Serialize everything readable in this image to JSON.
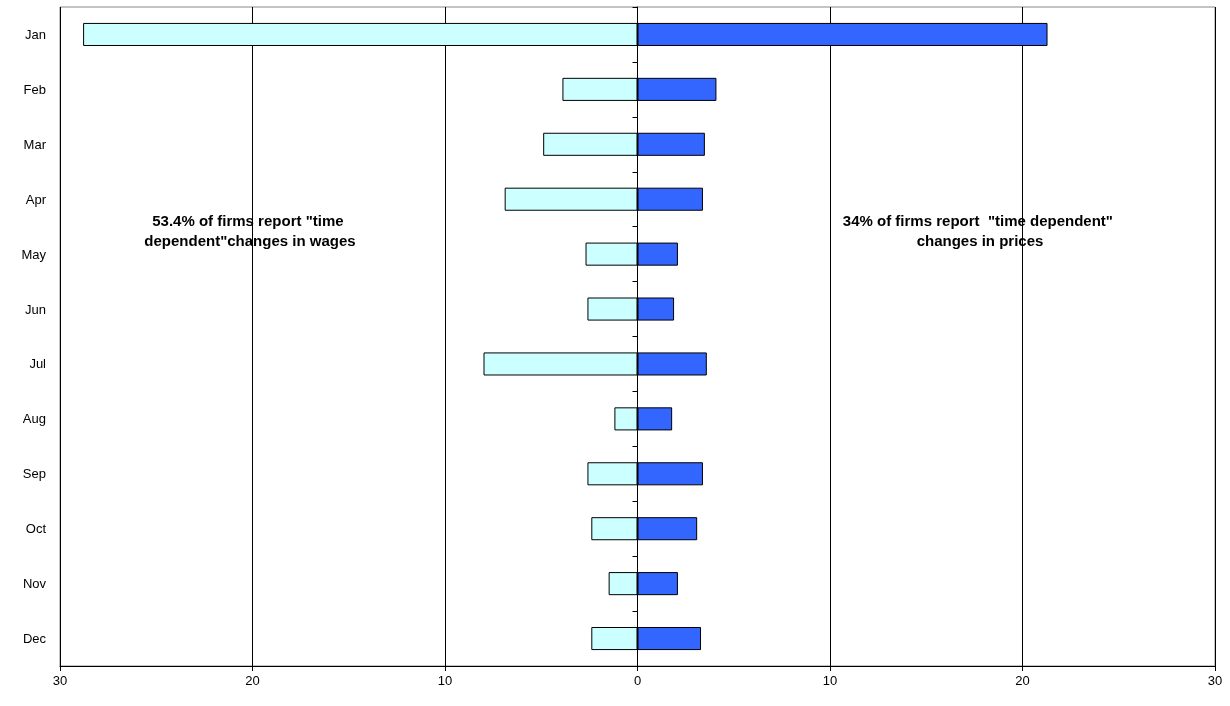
{
  "chart_data": {
    "type": "bar",
    "orientation": "horizontal",
    "stacked": true,
    "grid": "x",
    "categories": [
      "Jan",
      "Feb",
      "Mar",
      "Apr",
      "May",
      "Jun",
      "Jul",
      "Aug",
      "Sep",
      "Oct",
      "Nov",
      "Dec"
    ],
    "series": [
      {
        "color": "#ccffff",
        "values": [
          -28.8,
          -3.9,
          -4.9,
          -6.9,
          -2.7,
          -2.6,
          -8.0,
          -1.2,
          -2.6,
          -2.4,
          -1.5,
          -2.4
        ]
      },
      {
        "color": "#3366ff",
        "values": [
          21.3,
          4.1,
          3.5,
          3.4,
          2.1,
          1.9,
          3.6,
          1.8,
          3.4,
          3.1,
          2.1,
          3.3
        ]
      }
    ],
    "xlim": [
      -30,
      30
    ],
    "xticks": [
      {
        "value": -30,
        "label": "30"
      },
      {
        "value": -20,
        "label": "20"
      },
      {
        "value": -10,
        "label": "10"
      },
      0,
      10,
      20,
      30
    ],
    "annotations": [
      "53.4% of firms report \"time dependent\"changes in wages",
      "34% of firms report  \"time dependent\" changes in prices"
    ]
  }
}
